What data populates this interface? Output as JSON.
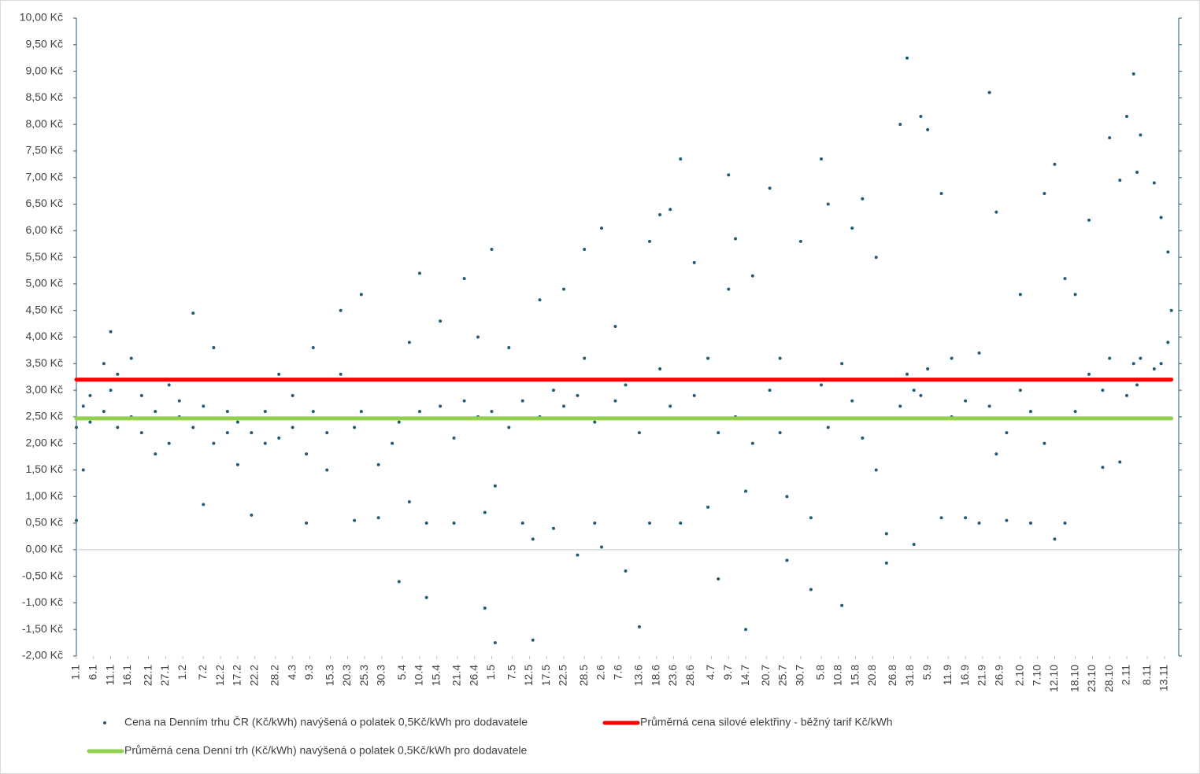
{
  "chart_data": {
    "type": "scatter",
    "xlim": [
      1,
      321
    ],
    "ylim": [
      -2,
      10
    ],
    "xticks": [
      {
        "value": 1,
        "label": "1.1"
      },
      {
        "value": 6,
        "label": "6.1"
      },
      {
        "value": 11,
        "label": "11.1"
      },
      {
        "value": 16,
        "label": "16.1"
      },
      {
        "value": 22,
        "label": "22.1"
      },
      {
        "value": 27,
        "label": "27.1"
      },
      {
        "value": 32,
        "label": "1.2"
      },
      {
        "value": 38,
        "label": "7.2"
      },
      {
        "value": 43,
        "label": "12.2"
      },
      {
        "value": 48,
        "label": "17.2"
      },
      {
        "value": 53,
        "label": "22.2"
      },
      {
        "value": 59,
        "label": "28.2"
      },
      {
        "value": 64,
        "label": "4.3"
      },
      {
        "value": 69,
        "label": "9.3"
      },
      {
        "value": 75,
        "label": "15.3"
      },
      {
        "value": 80,
        "label": "20.3"
      },
      {
        "value": 85,
        "label": "25.3"
      },
      {
        "value": 90,
        "label": "30.3"
      },
      {
        "value": 96,
        "label": "5.4"
      },
      {
        "value": 101,
        "label": "10.4"
      },
      {
        "value": 106,
        "label": "15.4"
      },
      {
        "value": 112,
        "label": "21.4"
      },
      {
        "value": 117,
        "label": "26.4"
      },
      {
        "value": 122,
        "label": "1.5"
      },
      {
        "value": 128,
        "label": "7.5"
      },
      {
        "value": 133,
        "label": "12.5"
      },
      {
        "value": 138,
        "label": "17.5"
      },
      {
        "value": 143,
        "label": "22.5"
      },
      {
        "value": 149,
        "label": "28.5"
      },
      {
        "value": 154,
        "label": "2.6"
      },
      {
        "value": 159,
        "label": "7.6"
      },
      {
        "value": 165,
        "label": "13.6"
      },
      {
        "value": 170,
        "label": "18.6"
      },
      {
        "value": 175,
        "label": "23.6"
      },
      {
        "value": 180,
        "label": "28.6"
      },
      {
        "value": 186,
        "label": "4.7"
      },
      {
        "value": 191,
        "label": "9.7"
      },
      {
        "value": 196,
        "label": "14.7"
      },
      {
        "value": 202,
        "label": "20.7"
      },
      {
        "value": 207,
        "label": "25.7"
      },
      {
        "value": 212,
        "label": "30.7"
      },
      {
        "value": 218,
        "label": "5.8"
      },
      {
        "value": 223,
        "label": "10.8"
      },
      {
        "value": 228,
        "label": "15.8"
      },
      {
        "value": 233,
        "label": "20.8"
      },
      {
        "value": 239,
        "label": "26.8"
      },
      {
        "value": 244,
        "label": "31.8"
      },
      {
        "value": 249,
        "label": "5.9"
      },
      {
        "value": 255,
        "label": "11.9"
      },
      {
        "value": 260,
        "label": "16.9"
      },
      {
        "value": 265,
        "label": "21.9"
      },
      {
        "value": 270,
        "label": "26.9"
      },
      {
        "value": 276,
        "label": "2.10"
      },
      {
        "value": 281,
        "label": "7.10"
      },
      {
        "value": 286,
        "label": "12.10"
      },
      {
        "value": 292,
        "label": "18.10"
      },
      {
        "value": 297,
        "label": "23.10"
      },
      {
        "value": 302,
        "label": "28.10"
      },
      {
        "value": 307,
        "label": "2.11"
      },
      {
        "value": 313,
        "label": "8.11"
      },
      {
        "value": 318,
        "label": "13.11"
      }
    ],
    "yticks": [
      {
        "value": -2,
        "label": "-2,00 Kč"
      },
      {
        "value": -1.5,
        "label": "-1,50 Kč"
      },
      {
        "value": -1,
        "label": "-1,00 Kč"
      },
      {
        "value": -0.5,
        "label": "-0,50 Kč"
      },
      {
        "value": 0,
        "label": "0,00 Kč"
      },
      {
        "value": 0.5,
        "label": "0,50 Kč"
      },
      {
        "value": 1,
        "label": "1,00 Kč"
      },
      {
        "value": 1.5,
        "label": "1,50 Kč"
      },
      {
        "value": 2,
        "label": "2,00 Kč"
      },
      {
        "value": 2.5,
        "label": "2,50 Kč"
      },
      {
        "value": 3,
        "label": "3,00 Kč"
      },
      {
        "value": 3.5,
        "label": "3,50 Kč"
      },
      {
        "value": 4,
        "label": "4,00 Kč"
      },
      {
        "value": 4.5,
        "label": "4,50 Kč"
      },
      {
        "value": 5,
        "label": "5,00 Kč"
      },
      {
        "value": 5.5,
        "label": "5,50 Kč"
      },
      {
        "value": 6,
        "label": "6,00 Kč"
      },
      {
        "value": 6.5,
        "label": "6,50 Kč"
      },
      {
        "value": 7,
        "label": "7,00 Kč"
      },
      {
        "value": 7.5,
        "label": "7,50 Kč"
      },
      {
        "value": 8,
        "label": "8,00 Kč"
      },
      {
        "value": 8.5,
        "label": "8,50 Kč"
      },
      {
        "value": 9,
        "label": "9,00 Kč"
      },
      {
        "value": 9.5,
        "label": "9,50 Kč"
      },
      {
        "value": 10,
        "label": "10,00 Kč"
      }
    ],
    "grid": false,
    "series": [
      {
        "name": "Cena na Denním trhu ČR (Kč/kWh) navýšená o polatek 0,5Kč/kWh pro dodavatele",
        "type": "scatter",
        "color": "#1f5c78",
        "x": [
          1,
          1,
          3,
          3,
          5,
          5,
          9,
          9,
          11,
          11,
          13,
          13,
          17,
          17,
          20,
          20,
          24,
          24,
          28,
          28,
          31,
          31,
          35,
          35,
          38,
          38,
          41,
          41,
          45,
          45,
          48,
          48,
          52,
          52,
          56,
          56,
          60,
          60,
          64,
          64,
          68,
          68,
          70,
          70,
          74,
          74,
          78,
          78,
          82,
          82,
          84,
          84,
          89,
          89,
          93,
          93,
          95,
          95,
          98,
          98,
          101,
          101,
          103,
          103,
          107,
          107,
          111,
          111,
          114,
          114,
          118,
          118,
          120,
          120,
          122,
          122,
          123,
          123,
          127,
          127,
          131,
          131,
          134,
          134,
          136,
          136,
          140,
          140,
          143,
          143,
          147,
          147,
          149,
          149,
          152,
          152,
          154,
          154,
          158,
          158,
          161,
          161,
          165,
          165,
          168,
          168,
          171,
          171,
          174,
          174,
          177,
          177,
          181,
          181,
          185,
          185,
          188,
          188,
          191,
          191,
          193,
          193,
          196,
          196,
          198,
          198,
          203,
          203,
          206,
          206,
          208,
          208,
          212,
          212,
          215,
          215,
          218,
          218,
          220,
          220,
          224,
          224,
          227,
          227,
          230,
          230,
          234,
          234,
          237,
          237,
          241,
          241,
          243,
          243,
          245,
          245,
          247,
          247,
          249,
          249,
          253,
          253,
          256,
          256,
          260,
          260,
          264,
          264,
          267,
          267,
          269,
          269,
          272,
          272,
          276,
          276,
          279,
          279,
          283,
          283,
          286,
          286,
          289,
          289,
          292,
          292,
          296,
          296,
          300,
          300,
          302,
          302,
          305,
          305,
          307,
          307,
          309,
          309,
          310,
          310,
          311,
          311,
          315,
          315,
          317,
          317,
          319,
          319,
          320,
          320
        ],
        "values": [
          0.55,
          2.3,
          1.5,
          2.7,
          2.9,
          2.4,
          3.5,
          2.6,
          4.1,
          3.0,
          2.3,
          3.3,
          3.6,
          2.5,
          2.2,
          2.9,
          1.8,
          2.6,
          2.0,
          3.1,
          2.5,
          2.8,
          4.45,
          2.3,
          0.85,
          2.7,
          3.8,
          2.0,
          2.2,
          2.6,
          1.6,
          2.4,
          0.65,
          2.2,
          2.0,
          2.6,
          3.3,
          2.1,
          2.3,
          2.9,
          0.5,
          1.8,
          3.8,
          2.6,
          1.5,
          2.2,
          4.5,
          3.3,
          0.55,
          2.3,
          4.8,
          2.6,
          0.6,
          1.6,
          3.2,
          2.0,
          -0.6,
          2.4,
          3.9,
          0.9,
          5.2,
          2.6,
          -0.9,
          0.5,
          4.3,
          2.7,
          0.5,
          2.1,
          5.1,
          2.8,
          4.0,
          2.5,
          -1.1,
          0.7,
          5.65,
          2.6,
          -1.75,
          1.2,
          3.8,
          2.3,
          0.5,
          2.8,
          -1.7,
          0.2,
          4.7,
          2.5,
          0.4,
          3.0,
          4.9,
          2.7,
          -0.1,
          2.9,
          5.65,
          3.6,
          0.5,
          2.4,
          6.05,
          0.05,
          4.2,
          2.8,
          -0.4,
          3.1,
          -1.45,
          2.2,
          5.8,
          0.5,
          6.3,
          3.4,
          6.4,
          2.7,
          7.35,
          0.5,
          5.4,
          2.9,
          0.8,
          3.6,
          -0.55,
          2.2,
          7.05,
          4.9,
          5.85,
          2.5,
          -1.5,
          1.1,
          5.15,
          2.0,
          6.8,
          3.0,
          3.6,
          2.2,
          -0.2,
          1.0,
          5.8,
          3.2,
          -0.75,
          0.6,
          7.35,
          3.1,
          6.5,
          2.3,
          -1.05,
          3.5,
          6.05,
          2.8,
          6.6,
          2.1,
          5.5,
          1.5,
          -0.25,
          0.3,
          8.0,
          2.7,
          9.25,
          3.3,
          0.1,
          3.0,
          8.15,
          2.9,
          7.9,
          3.4,
          6.7,
          0.6,
          2.5,
          3.6,
          0.6,
          2.8,
          3.7,
          0.5,
          8.6,
          2.7,
          6.35,
          1.8,
          0.55,
          2.2,
          4.8,
          3.0,
          0.5,
          2.6,
          6.7,
          2.0,
          7.25,
          0.2,
          5.1,
          0.5,
          2.6,
          4.8,
          6.2,
          3.3,
          1.55,
          3.0,
          7.75,
          3.6,
          6.95,
          1.65,
          8.15,
          2.9,
          8.95,
          3.5,
          7.1,
          3.1,
          7.8,
          3.6,
          6.9,
          3.4,
          6.25,
          3.5,
          5.6,
          3.9,
          4.5,
          3.2
        ]
      },
      {
        "name": "Průměrná cena silové elektřiny - běžný tarif Kč/kWh",
        "type": "line",
        "color": "#ff0000",
        "x": [
          1,
          320
        ],
        "values": [
          3.2,
          3.2
        ]
      },
      {
        "name": "Průměrná cena Denní trh (Kč/kWh) navýšená o polatek 0,5Kč/kWh pro dodavatele",
        "type": "line",
        "color": "#92d050",
        "x": [
          1,
          320
        ],
        "values": [
          2.47,
          2.47
        ]
      }
    ]
  }
}
